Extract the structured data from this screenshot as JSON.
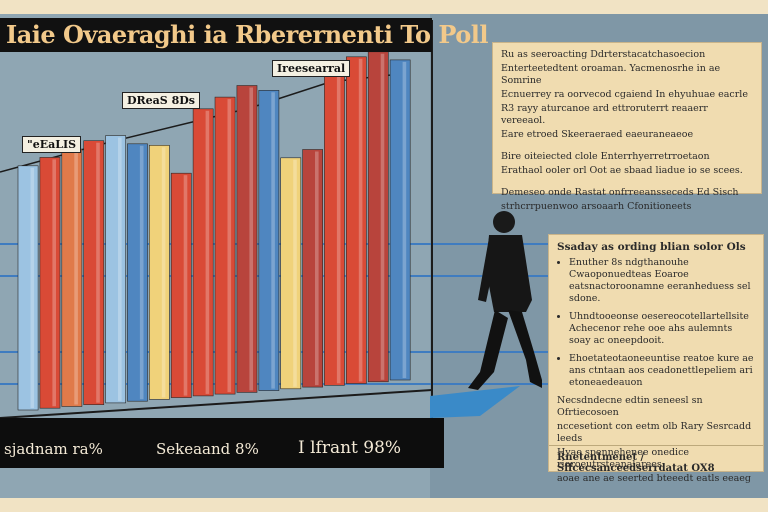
{
  "headline": "Iaie Ovaeraghi ia Rberernenti To Poll",
  "callouts": {
    "left": "\"eEaLIS",
    "middle": "DReaS 8Ds",
    "top": "Ireesearral"
  },
  "floor_labels": [
    "sjadnam ra%",
    "Sekeaand 8%",
    "I lfrant 98%"
  ],
  "top_note": {
    "paragraphs": [
      "Ru as seeroacting Ddrterstacatchasoecion",
      "Enterteetedtent oroaman. Yacmenosrhe in ae Somrine",
      "Ecnuerrey ra oorvecod cgaiend In ehyuhuae eacrle",
      "R3 rayy aturcanoe ard ettroruterrt reaaerr vereeaol.",
      "Eare etroed Skeeraeraed eaeuraneaeoe"
    ],
    "paragraphs2": [
      "Bire oiteiected clole Enterrhyerretrroetaon",
      "Erathaol ooler orl Oot ae sbaad liadue io se scees."
    ],
    "paragraphs3": [
      "Demeseo onde Rastat onfrreeansseceds Ed Sisch",
      "strhcrrpuenwoo arsoaarh Cfonitioneets"
    ]
  },
  "bottom_note": {
    "title": "Ssaday as ording blian solor Ols",
    "bullets": [
      "Enuther 8s ndgthanouhe Cwaoponuedteas Eoaroe eatsnactoroonamne eeranheduess sel sdone.",
      "Uhndtooeonse oesereocotellartellsite Achecenor rehe ooe ahs aulemnts soay ac oneepdooit.",
      "Ehoetateotaoneeuntise reatoe kure ae ans ctntaan aos ceadonettlepeliem ari etoneaedeauon"
    ],
    "paragraph": [
      "Necsdndecne edtin seneesl sn Ofrtiecosoen",
      "nccesetiont con eetm olb Rary Sesrcadd leeds",
      "Hyae spennehenee onedice rioroeutrsteanalarees",
      "aoae ane ae seerted bteeedt eatls eeaeg"
    ],
    "footer": "Rnetentmenet / Sffcecsanceedserrdatat OX8"
  },
  "chart_data": {
    "type": "bar",
    "title": "Iaie Ovaeraghi ia Rberernenti To Poll",
    "xlabel": "",
    "ylabel": "",
    "ylim": [
      0,
      100
    ],
    "grid": false,
    "colors": {
      "blue": "#4f86c0",
      "red": "#d94a36",
      "crimson": "#b8443c",
      "yellow": "#f0d27a",
      "orange": "#e07a4a",
      "lightblue": "#9cc3e2"
    },
    "bars": [
      {
        "value": 74,
        "color": "lightblue"
      },
      {
        "value": 76,
        "color": "red"
      },
      {
        "value": 78,
        "color": "orange"
      },
      {
        "value": 80,
        "color": "red"
      },
      {
        "value": 81,
        "color": "lightblue"
      },
      {
        "value": 78,
        "color": "blue"
      },
      {
        "value": 77,
        "color": "yellow"
      },
      {
        "value": 68,
        "color": "red"
      },
      {
        "value": 87,
        "color": "red"
      },
      {
        "value": 90,
        "color": "red"
      },
      {
        "value": 93,
        "color": "crimson"
      },
      {
        "value": 91,
        "color": "blue"
      },
      {
        "value": 70,
        "color": "yellow"
      },
      {
        "value": 72,
        "color": "crimson"
      },
      {
        "value": 96,
        "color": "red"
      },
      {
        "value": 99,
        "color": "red"
      },
      {
        "value": 100,
        "color": "crimson"
      },
      {
        "value": 97,
        "color": "blue"
      }
    ]
  }
}
